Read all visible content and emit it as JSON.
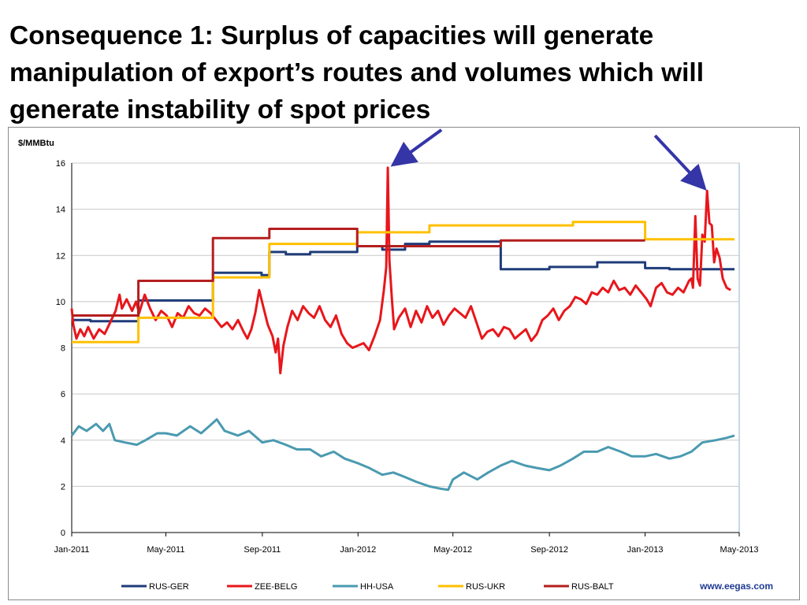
{
  "slide": {
    "title": "Consequence 1: Surplus of capacities will generate manipulation of export’s routes and volumes which will generate instability of spot prices"
  },
  "chart_data": {
    "type": "line",
    "title": "",
    "ylabel": "$/MMBtu",
    "xlabel": "",
    "ylim": [
      0,
      16
    ],
    "yticks": [
      0,
      2,
      4,
      6,
      8,
      10,
      12,
      14,
      16
    ],
    "xlim": [
      "2011-01-01",
      "2013-05-01"
    ],
    "xticks": [
      {
        "date": "2011-01-01",
        "label": "Jan-2011"
      },
      {
        "date": "2011-05-01",
        "label": "May-2011"
      },
      {
        "date": "2011-09-01",
        "label": "Sep-2011"
      },
      {
        "date": "2012-01-01",
        "label": "Jan-2012"
      },
      {
        "date": "2012-05-01",
        "label": "May-2012"
      },
      {
        "date": "2012-09-01",
        "label": "Sep-2012"
      },
      {
        "date": "2013-01-01",
        "label": "Jan-2013"
      },
      {
        "date": "2013-05-01",
        "label": "May-2013"
      }
    ],
    "grid": "horizontal",
    "legend_position": "bottom",
    "source": "www.eegas.com",
    "series": [
      {
        "name": "RUS-GER",
        "color": "#1f3c7a",
        "step": true,
        "points": [
          [
            "2011-01-01",
            9.2
          ],
          [
            "2011-01-25",
            9.15
          ],
          [
            "2011-03-27",
            10.05
          ],
          [
            "2011-06-30",
            11.25
          ],
          [
            "2011-08-31",
            11.15
          ],
          [
            "2011-09-10",
            12.15
          ],
          [
            "2011-10-01",
            12.05
          ],
          [
            "2011-11-01",
            12.15
          ],
          [
            "2011-12-31",
            12.4
          ],
          [
            "2012-02-01",
            12.25
          ],
          [
            "2012-03-01",
            12.5
          ],
          [
            "2012-04-01",
            12.6
          ],
          [
            "2012-07-01",
            11.4
          ],
          [
            "2012-09-01",
            11.5
          ],
          [
            "2012-11-01",
            11.7
          ],
          [
            "2013-01-01",
            11.45
          ],
          [
            "2013-02-01",
            11.4
          ],
          [
            "2013-04-25",
            11.4
          ]
        ]
      },
      {
        "name": "ZEE-BELG",
        "color": "#e8161b",
        "step": false,
        "points": [
          [
            "2011-01-01",
            9.7
          ],
          [
            "2011-01-03",
            9.0
          ],
          [
            "2011-01-07",
            8.4
          ],
          [
            "2011-01-12",
            8.8
          ],
          [
            "2011-01-17",
            8.5
          ],
          [
            "2011-01-22",
            8.9
          ],
          [
            "2011-01-29",
            8.4
          ],
          [
            "2011-02-05",
            8.8
          ],
          [
            "2011-02-12",
            8.6
          ],
          [
            "2011-02-19",
            9.1
          ],
          [
            "2011-02-26",
            9.6
          ],
          [
            "2011-03-03",
            10.3
          ],
          [
            "2011-03-06",
            9.7
          ],
          [
            "2011-03-12",
            10.1
          ],
          [
            "2011-03-19",
            9.6
          ],
          [
            "2011-03-24",
            10.0
          ],
          [
            "2011-03-28",
            9.5
          ],
          [
            "2011-04-04",
            10.3
          ],
          [
            "2011-04-11",
            9.7
          ],
          [
            "2011-04-18",
            9.2
          ],
          [
            "2011-04-25",
            9.6
          ],
          [
            "2011-05-02",
            9.4
          ],
          [
            "2011-05-09",
            8.9
          ],
          [
            "2011-05-16",
            9.5
          ],
          [
            "2011-05-23",
            9.3
          ],
          [
            "2011-05-30",
            9.8
          ],
          [
            "2011-06-06",
            9.5
          ],
          [
            "2011-06-13",
            9.4
          ],
          [
            "2011-06-20",
            9.7
          ],
          [
            "2011-06-27",
            9.5
          ],
          [
            "2011-07-04",
            9.2
          ],
          [
            "2011-07-11",
            8.9
          ],
          [
            "2011-07-18",
            9.1
          ],
          [
            "2011-07-25",
            8.8
          ],
          [
            "2011-08-01",
            9.2
          ],
          [
            "2011-08-08",
            8.7
          ],
          [
            "2011-08-13",
            8.4
          ],
          [
            "2011-08-18",
            8.8
          ],
          [
            "2011-08-23",
            9.5
          ],
          [
            "2011-08-28",
            10.5
          ],
          [
            "2011-09-02",
            9.8
          ],
          [
            "2011-09-08",
            9.0
          ],
          [
            "2011-09-14",
            8.5
          ],
          [
            "2011-09-18",
            7.8
          ],
          [
            "2011-09-21",
            8.4
          ],
          [
            "2011-09-24",
            6.9
          ],
          [
            "2011-09-28",
            8.1
          ],
          [
            "2011-10-03",
            8.9
          ],
          [
            "2011-10-09",
            9.6
          ],
          [
            "2011-10-16",
            9.2
          ],
          [
            "2011-10-23",
            9.8
          ],
          [
            "2011-10-30",
            9.5
          ],
          [
            "2011-11-06",
            9.3
          ],
          [
            "2011-11-13",
            9.8
          ],
          [
            "2011-11-20",
            9.2
          ],
          [
            "2011-11-27",
            8.9
          ],
          [
            "2011-12-04",
            9.4
          ],
          [
            "2011-12-11",
            8.6
          ],
          [
            "2011-12-18",
            8.2
          ],
          [
            "2011-12-25",
            8.0
          ],
          [
            "2012-01-01",
            8.1
          ],
          [
            "2012-01-08",
            8.2
          ],
          [
            "2012-01-15",
            7.9
          ],
          [
            "2012-01-22",
            8.5
          ],
          [
            "2012-01-29",
            9.2
          ],
          [
            "2012-02-03",
            10.5
          ],
          [
            "2012-02-06",
            11.5
          ],
          [
            "2012-02-08",
            15.8
          ],
          [
            "2012-02-10",
            11.8
          ],
          [
            "2012-02-13",
            10.2
          ],
          [
            "2012-02-16",
            8.8
          ],
          [
            "2012-02-22",
            9.3
          ],
          [
            "2012-03-01",
            9.7
          ],
          [
            "2012-03-08",
            8.9
          ],
          [
            "2012-03-15",
            9.6
          ],
          [
            "2012-03-22",
            9.1
          ],
          [
            "2012-03-29",
            9.8
          ],
          [
            "2012-04-05",
            9.3
          ],
          [
            "2012-04-12",
            9.6
          ],
          [
            "2012-04-19",
            9.0
          ],
          [
            "2012-04-26",
            9.4
          ],
          [
            "2012-05-03",
            9.7
          ],
          [
            "2012-05-10",
            9.5
          ],
          [
            "2012-05-17",
            9.3
          ],
          [
            "2012-05-24",
            9.8
          ],
          [
            "2012-05-31",
            9.1
          ],
          [
            "2012-06-07",
            8.4
          ],
          [
            "2012-06-14",
            8.7
          ],
          [
            "2012-06-21",
            8.8
          ],
          [
            "2012-06-28",
            8.5
          ],
          [
            "2012-07-05",
            8.9
          ],
          [
            "2012-07-12",
            8.8
          ],
          [
            "2012-07-19",
            8.4
          ],
          [
            "2012-07-26",
            8.6
          ],
          [
            "2012-08-02",
            8.8
          ],
          [
            "2012-08-09",
            8.3
          ],
          [
            "2012-08-16",
            8.6
          ],
          [
            "2012-08-23",
            9.2
          ],
          [
            "2012-08-30",
            9.4
          ],
          [
            "2012-09-06",
            9.7
          ],
          [
            "2012-09-13",
            9.2
          ],
          [
            "2012-09-20",
            9.6
          ],
          [
            "2012-09-27",
            9.8
          ],
          [
            "2012-10-04",
            10.2
          ],
          [
            "2012-10-11",
            10.1
          ],
          [
            "2012-10-18",
            9.9
          ],
          [
            "2012-10-25",
            10.4
          ],
          [
            "2012-11-01",
            10.3
          ],
          [
            "2012-11-08",
            10.6
          ],
          [
            "2012-11-15",
            10.4
          ],
          [
            "2012-11-22",
            10.9
          ],
          [
            "2012-11-29",
            10.5
          ],
          [
            "2012-12-06",
            10.6
          ],
          [
            "2012-12-13",
            10.3
          ],
          [
            "2012-12-20",
            10.7
          ],
          [
            "2012-12-27",
            10.4
          ],
          [
            "2013-01-03",
            10.1
          ],
          [
            "2013-01-08",
            9.8
          ],
          [
            "2013-01-15",
            10.6
          ],
          [
            "2013-01-22",
            10.8
          ],
          [
            "2013-01-29",
            10.4
          ],
          [
            "2013-02-05",
            10.3
          ],
          [
            "2013-02-12",
            10.6
          ],
          [
            "2013-02-19",
            10.4
          ],
          [
            "2013-02-26",
            10.9
          ],
          [
            "2013-03-01",
            11.0
          ],
          [
            "2013-03-03",
            10.6
          ],
          [
            "2013-03-06",
            13.7
          ],
          [
            "2013-03-09",
            11.0
          ],
          [
            "2013-03-12",
            10.7
          ],
          [
            "2013-03-15",
            12.9
          ],
          [
            "2013-03-18",
            12.6
          ],
          [
            "2013-03-21",
            14.8
          ],
          [
            "2013-03-24",
            13.4
          ],
          [
            "2013-03-27",
            13.3
          ],
          [
            "2013-03-30",
            11.7
          ],
          [
            "2013-04-02",
            12.3
          ],
          [
            "2013-04-06",
            11.9
          ],
          [
            "2013-04-10",
            11.0
          ],
          [
            "2013-04-15",
            10.6
          ],
          [
            "2013-04-20",
            10.5
          ]
        ]
      },
      {
        "name": "HH-USA",
        "color": "#4a9ab0",
        "step": false,
        "points": [
          [
            "2011-01-01",
            4.2
          ],
          [
            "2011-01-10",
            4.6
          ],
          [
            "2011-01-20",
            4.4
          ],
          [
            "2011-02-01",
            4.7
          ],
          [
            "2011-02-10",
            4.4
          ],
          [
            "2011-02-18",
            4.7
          ],
          [
            "2011-02-25",
            4.0
          ],
          [
            "2011-03-10",
            3.9
          ],
          [
            "2011-03-25",
            3.8
          ],
          [
            "2011-04-05",
            4.0
          ],
          [
            "2011-04-20",
            4.3
          ],
          [
            "2011-05-01",
            4.3
          ],
          [
            "2011-05-15",
            4.2
          ],
          [
            "2011-06-01",
            4.6
          ],
          [
            "2011-06-15",
            4.3
          ],
          [
            "2011-06-25",
            4.6
          ],
          [
            "2011-07-05",
            4.9
          ],
          [
            "2011-07-15",
            4.4
          ],
          [
            "2011-08-01",
            4.2
          ],
          [
            "2011-08-15",
            4.4
          ],
          [
            "2011-09-01",
            3.9
          ],
          [
            "2011-09-15",
            4.0
          ],
          [
            "2011-10-01",
            3.8
          ],
          [
            "2011-10-15",
            3.6
          ],
          [
            "2011-11-01",
            3.6
          ],
          [
            "2011-11-15",
            3.3
          ],
          [
            "2011-12-01",
            3.5
          ],
          [
            "2011-12-15",
            3.2
          ],
          [
            "2012-01-01",
            3.0
          ],
          [
            "2012-01-15",
            2.8
          ],
          [
            "2012-02-01",
            2.5
          ],
          [
            "2012-02-15",
            2.6
          ],
          [
            "2012-03-01",
            2.4
          ],
          [
            "2012-03-15",
            2.2
          ],
          [
            "2012-04-01",
            2.0
          ],
          [
            "2012-04-15",
            1.9
          ],
          [
            "2012-04-25",
            1.85
          ],
          [
            "2012-05-01",
            2.3
          ],
          [
            "2012-05-15",
            2.6
          ],
          [
            "2012-06-01",
            2.3
          ],
          [
            "2012-06-15",
            2.6
          ],
          [
            "2012-07-01",
            2.9
          ],
          [
            "2012-07-15",
            3.1
          ],
          [
            "2012-08-01",
            2.9
          ],
          [
            "2012-08-15",
            2.8
          ],
          [
            "2012-09-01",
            2.7
          ],
          [
            "2012-09-15",
            2.9
          ],
          [
            "2012-10-01",
            3.2
          ],
          [
            "2012-10-15",
            3.5
          ],
          [
            "2012-11-01",
            3.5
          ],
          [
            "2012-11-15",
            3.7
          ],
          [
            "2012-12-01",
            3.5
          ],
          [
            "2012-12-15",
            3.3
          ],
          [
            "2013-01-01",
            3.3
          ],
          [
            "2013-01-15",
            3.4
          ],
          [
            "2013-02-01",
            3.2
          ],
          [
            "2013-02-15",
            3.3
          ],
          [
            "2013-03-01",
            3.5
          ],
          [
            "2013-03-15",
            3.9
          ],
          [
            "2013-04-01",
            4.0
          ],
          [
            "2013-04-15",
            4.1
          ],
          [
            "2013-04-25",
            4.2
          ]
        ]
      },
      {
        "name": "RUS-UKR",
        "color": "#ffc000",
        "step": true,
        "points": [
          [
            "2011-01-01",
            8.25
          ],
          [
            "2011-03-27",
            9.3
          ],
          [
            "2011-06-30",
            11.05
          ],
          [
            "2011-09-10",
            12.5
          ],
          [
            "2011-12-31",
            13.0
          ],
          [
            "2012-04-01",
            13.3
          ],
          [
            "2012-10-01",
            13.45
          ],
          [
            "2013-01-01",
            12.7
          ],
          [
            "2013-04-25",
            12.7
          ]
        ]
      },
      {
        "name": "RUS-BALT",
        "color": "#b41e1e",
        "step": true,
        "points": [
          [
            "2011-01-01",
            9.4
          ],
          [
            "2011-03-27",
            10.9
          ],
          [
            "2011-06-30",
            12.75
          ],
          [
            "2011-09-10",
            13.15
          ],
          [
            "2011-12-31",
            12.4
          ],
          [
            "2012-07-01",
            12.65
          ],
          [
            "2013-01-01",
            12.65
          ]
        ]
      }
    ],
    "annotations": [
      {
        "type": "arrow",
        "target": [
          "2012-02-08",
          15.8
        ],
        "color": "#3535a8"
      },
      {
        "type": "arrow",
        "target": [
          "2013-03-21",
          14.8
        ],
        "color": "#3535a8"
      }
    ]
  }
}
